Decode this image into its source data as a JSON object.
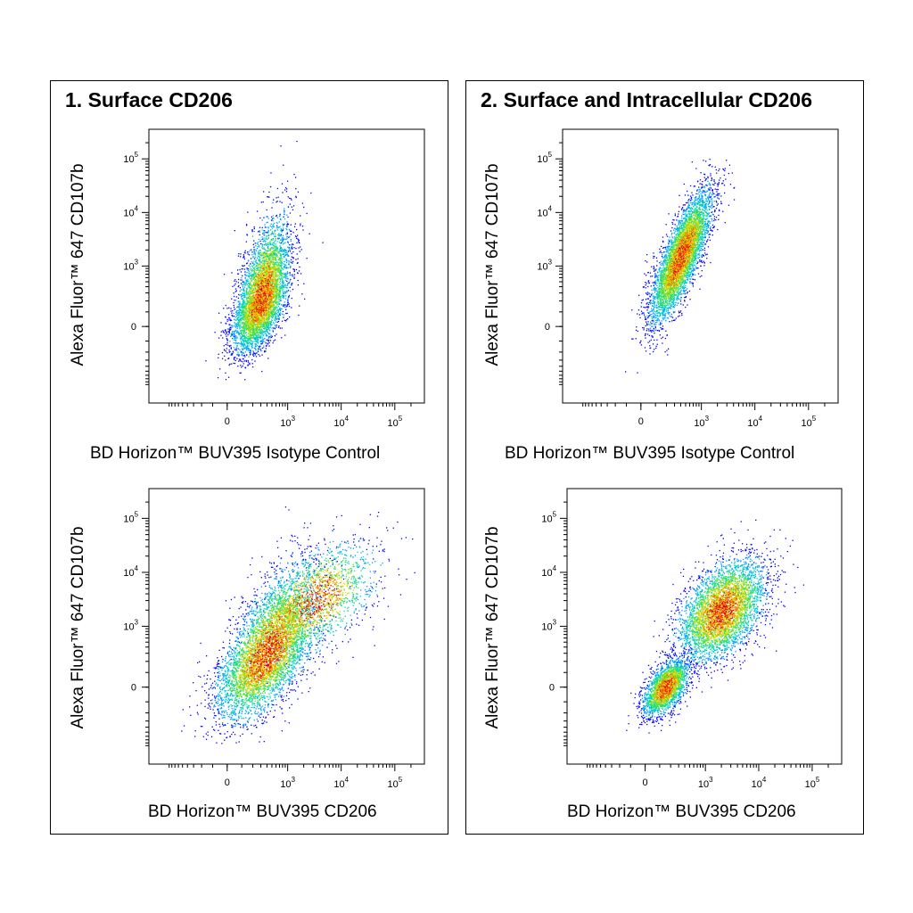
{
  "panels": [
    {
      "title": "1. Surface CD206"
    },
    {
      "title": "2. Surface and Intracellular CD206"
    }
  ],
  "density_colors": [
    "#0000ff",
    "#00a0ff",
    "#00d8c0",
    "#40e040",
    "#c0e000",
    "#ffd000",
    "#ff6000",
    "#e00000"
  ],
  "chart_data": [
    {
      "type": "scatter",
      "panel": "1. Surface CD206",
      "xlabel": "BD Horizon™ BUV395 Isotype Control",
      "ylabel": "Alexa Fluor™ 647  CD107b",
      "x_scale": "biexponential",
      "y_scale": "biexponential",
      "x_tick_labels": [
        "0",
        "10^3",
        "10^4",
        "10^5"
      ],
      "y_tick_labels": [
        "0",
        "10^3",
        "10^4",
        "10^5"
      ],
      "x_range": [
        -1000,
        262144
      ],
      "y_range": [
        -1000,
        262144
      ],
      "populations": [
        {
          "name": "main",
          "x_center": 300,
          "y_center": 200,
          "x_spread": "0 to 10^3",
          "y_spread": "-300 to 10^5",
          "shape": "upward elongated, dense core near origin"
        }
      ]
    },
    {
      "type": "scatter",
      "panel": "2. Surface and Intracellular CD206",
      "xlabel": "BD Horizon™ BUV395 Isotype Control",
      "ylabel": "Alexa Fluor™ 647  CD107b",
      "x_scale": "biexponential",
      "y_scale": "biexponential",
      "x_tick_labels": [
        "0",
        "10^3",
        "10^4",
        "10^5"
      ],
      "y_tick_labels": [
        "0",
        "10^3",
        "10^4",
        "10^5"
      ],
      "x_range": [
        -1000,
        262144
      ],
      "y_range": [
        -1000,
        262144
      ],
      "populations": [
        {
          "name": "main",
          "x_center": 400,
          "y_center": 1500,
          "x_spread": "-200 to 10^3",
          "y_spread": "-300 to 10^5",
          "shape": "diagonal elongated"
        }
      ]
    },
    {
      "type": "scatter",
      "panel": "1. Surface CD206",
      "xlabel": "BD Horizon™ BUV395 CD206",
      "ylabel": "Alexa Fluor™ 647  CD107b",
      "x_scale": "biexponential",
      "y_scale": "biexponential",
      "x_tick_labels": [
        "0",
        "10^3",
        "10^4",
        "10^5"
      ],
      "y_tick_labels": [
        "0",
        "10^3",
        "10^4",
        "10^5"
      ],
      "x_range": [
        -1000,
        262144
      ],
      "y_range": [
        -1000,
        262144
      ],
      "populations": [
        {
          "name": "main",
          "x_center": 400,
          "y_center": 300,
          "x_spread": "-300 to 10^5",
          "y_spread": "-300 to 10^5",
          "shape": "broad diagonal smear"
        }
      ]
    },
    {
      "type": "scatter",
      "panel": "2. Surface and Intracellular CD206",
      "xlabel": "BD Horizon™ BUV395 CD206",
      "ylabel": "Alexa Fluor™ 647  CD107b",
      "x_scale": "biexponential",
      "y_scale": "biexponential",
      "x_tick_labels": [
        "0",
        "10^3",
        "10^4",
        "10^5"
      ],
      "y_tick_labels": [
        "0",
        "10^3",
        "10^4",
        "10^5"
      ],
      "x_range": [
        -1000,
        262144
      ],
      "y_range": [
        -1000,
        262144
      ],
      "populations": [
        {
          "name": "negative",
          "x_center": 150,
          "y_center": 0,
          "x_spread": "-300 to 10^3",
          "y_spread": "-300 to 10^3",
          "shape": "compact"
        },
        {
          "name": "positive",
          "x_center": 2000,
          "y_center": 2000,
          "x_spread": "10^3 to 2x10^4",
          "y_spread": "3x10^2 to 10^5",
          "shape": "round cloud"
        }
      ]
    }
  ]
}
